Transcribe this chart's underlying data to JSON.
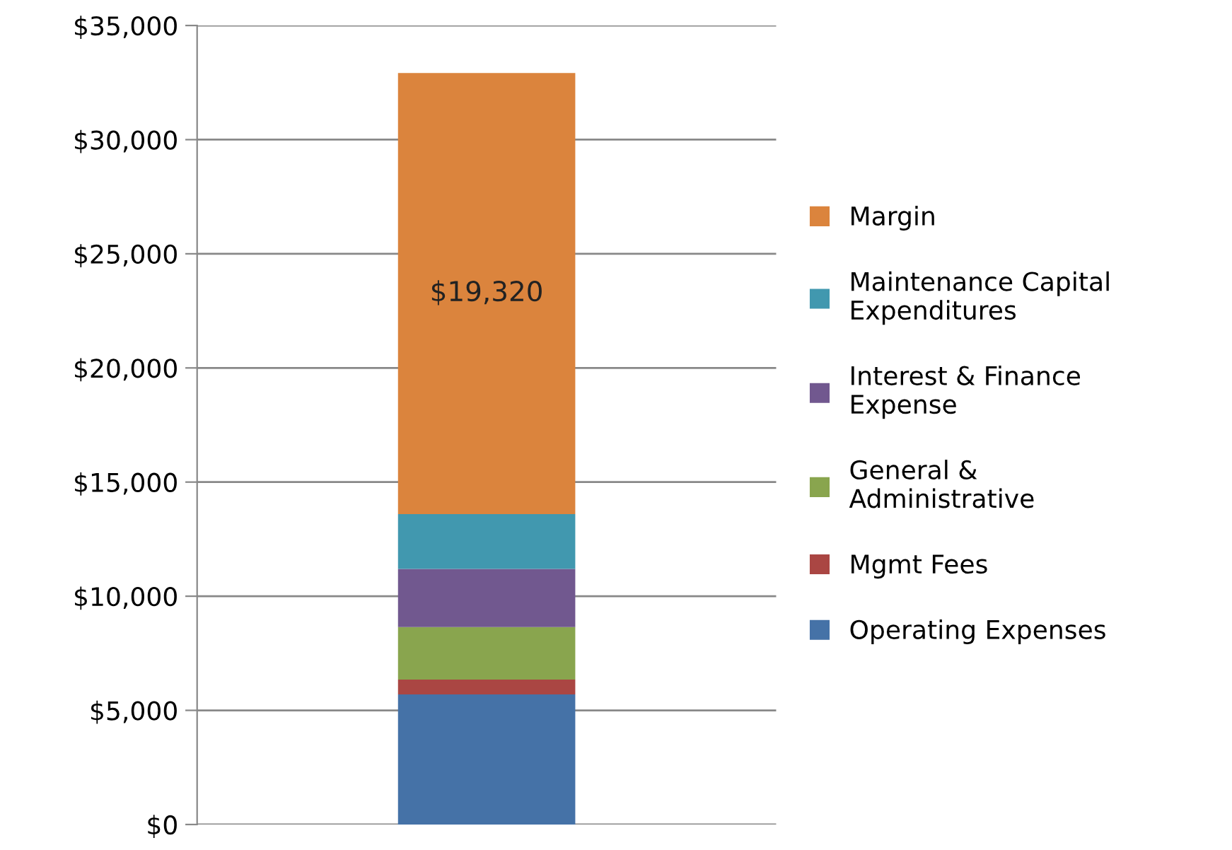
{
  "chart_data": {
    "type": "bar",
    "stacked": true,
    "categories": [
      null
    ],
    "series": [
      {
        "name": "Operating Expenses",
        "color": "#4572a7",
        "values": [
          5700
        ]
      },
      {
        "name": "Mgmt Fees",
        "color": "#aa4643",
        "values": [
          650
        ]
      },
      {
        "name": "General & Administrative",
        "color": "#89a54e",
        "values": [
          2300
        ]
      },
      {
        "name": "Interest & Finance Expense",
        "color": "#71588f",
        "values": [
          2550
        ]
      },
      {
        "name": "Maintenance Capital Expenditures",
        "color": "#4198af",
        "values": [
          2400
        ]
      },
      {
        "name": "Margin",
        "color": "#db843d",
        "values": [
          19320
        ],
        "value_labels": [
          "$19,320"
        ]
      }
    ],
    "ylim": [
      0,
      35000
    ],
    "yticks": [
      {
        "value": 0,
        "label": "$0"
      },
      {
        "value": 5000,
        "label": "$5,000"
      },
      {
        "value": 10000,
        "label": "$10,000"
      },
      {
        "value": 15000,
        "label": "$15,000"
      },
      {
        "value": 20000,
        "label": "$20,000"
      },
      {
        "value": 25000,
        "label": "$25,000"
      },
      {
        "value": 30000,
        "label": "$30,000"
      },
      {
        "value": 35000,
        "label": "$35,000"
      }
    ],
    "grid": "y",
    "legend": "right"
  }
}
